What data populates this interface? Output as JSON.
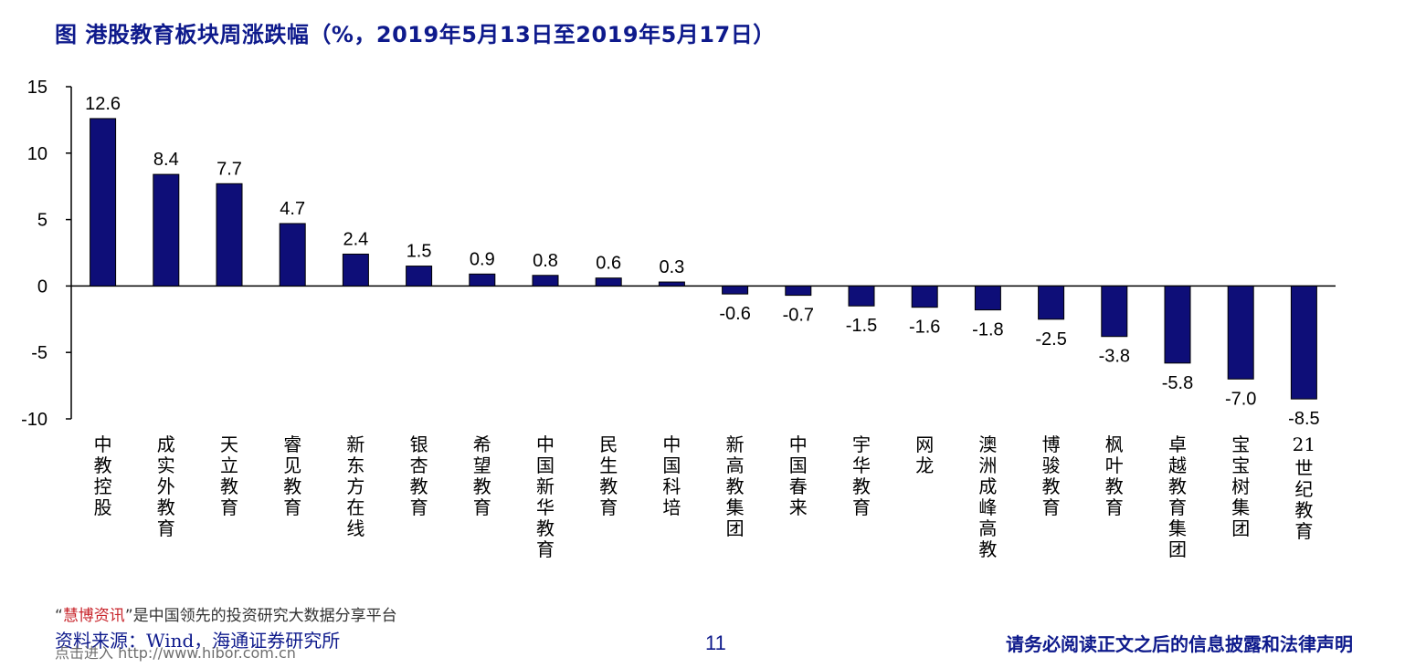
{
  "title": "图  港股教育板块周涨跌幅（%，2019年5月13日至2019年5月17日）",
  "footer": {
    "watermark_quote_open": "“",
    "watermark_brand": "慧博资讯",
    "watermark_quote_close": "”",
    "watermark_text": "是中国领先的投资研究大数据分享平台",
    "source": "资料来源：Wind，海通证券研究所",
    "watermark_link": "点击进入 http://www.hibor.com.cn",
    "page_number": "11",
    "disclaimer": "请务必阅读正文之后的信息披露和法律声明"
  },
  "chart_data": {
    "type": "bar",
    "title": "图  港股教育板块周涨跌幅（%，2019年5月13日至2019年5月17日）",
    "categories": [
      "中教控股",
      "成实外教育",
      "天立教育",
      "睿见教育",
      "新东方在线",
      "银杏教育",
      "希望教育",
      "中国新华教育",
      "民生教育",
      "中国科培",
      "新高教集团",
      "中国春来",
      "宇华教育",
      "网龙",
      "澳洲成峰高教",
      "博骏教育",
      "枫叶教育",
      "卓越教育集团",
      "宝宝树集团",
      "21世纪教育"
    ],
    "values": [
      12.6,
      8.4,
      7.7,
      4.7,
      2.4,
      1.5,
      0.9,
      0.8,
      0.6,
      0.3,
      -0.6,
      -0.7,
      -1.5,
      -1.6,
      -1.8,
      -2.5,
      -3.8,
      -5.8,
      -7.0,
      -8.5
    ],
    "value_labels": [
      "12.6",
      "8.4",
      "7.7",
      "4.7",
      "2.4",
      "1.5",
      "0.9",
      "0.8",
      "0.6",
      "0.3",
      "-0.6",
      "-0.7",
      "-1.5",
      "-1.6",
      "-1.8",
      "-2.5",
      "-3.8",
      "-5.8",
      "-7.0",
      "-8.5"
    ],
    "yticks": [
      "15",
      "10",
      "5",
      "0",
      "-5",
      "-10"
    ],
    "ylim": [
      -10,
      15
    ],
    "xlabel": "",
    "ylabel": "",
    "grid": false,
    "legend": "none",
    "bar_color": "#0e0e78"
  }
}
